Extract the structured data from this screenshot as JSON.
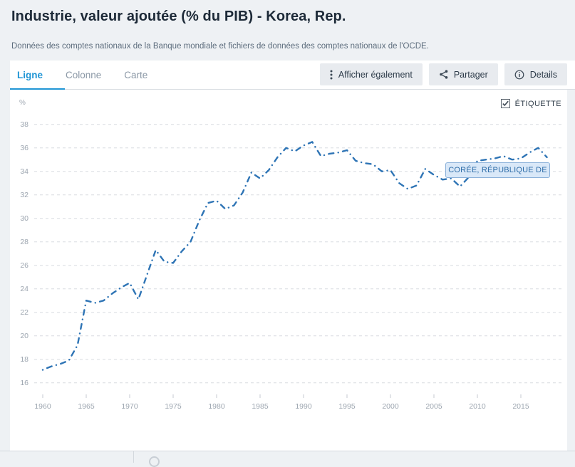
{
  "header": {
    "title": "Industrie, valeur ajoutée (% du PIB) - Korea, Rep.",
    "subtitle": "Données des comptes nationaux de la Banque mondiale et fichiers de données des comptes nationaux de l'OCDE."
  },
  "tabs": {
    "ligne": "Ligne",
    "colonne": "Colonne",
    "carte": "Carte",
    "active": "Ligne"
  },
  "actions": {
    "show_also": "Afficher également",
    "share": "Partager",
    "details": "Details"
  },
  "chart_controls": {
    "label_toggle": "ÉTIQUETTE",
    "checked": true
  },
  "series_label": "CORÉE, RÉPUBLIQUE DE",
  "chart_data": {
    "type": "line",
    "title": "Industrie, valeur ajoutée (% du PIB) - Korea, Rep.",
    "xlabel": "",
    "ylabel": "%",
    "x": [
      1960,
      1961,
      1962,
      1963,
      1964,
      1965,
      1966,
      1967,
      1968,
      1969,
      1970,
      1971,
      1972,
      1973,
      1974,
      1975,
      1976,
      1977,
      1978,
      1979,
      1980,
      1981,
      1982,
      1983,
      1984,
      1985,
      1986,
      1987,
      1988,
      1989,
      1990,
      1991,
      1992,
      1993,
      1994,
      1995,
      1996,
      1997,
      1998,
      1999,
      2000,
      2001,
      2002,
      2003,
      2004,
      2005,
      2006,
      2007,
      2008,
      2009,
      2010,
      2011,
      2012,
      2013,
      2014,
      2015,
      2016,
      2017,
      2018
    ],
    "series": [
      {
        "name": "Corée, République de",
        "values": [
          17.1,
          17.4,
          17.6,
          17.9,
          19.2,
          23.0,
          22.8,
          23.0,
          23.6,
          24.1,
          24.5,
          23.1,
          25.2,
          27.3,
          26.3,
          26.2,
          27.2,
          28.0,
          29.8,
          31.3,
          31.5,
          30.8,
          31.1,
          32.2,
          33.9,
          33.4,
          34.1,
          35.2,
          36.0,
          35.7,
          36.2,
          36.5,
          35.3,
          35.5,
          35.6,
          35.8,
          34.9,
          34.7,
          34.6,
          34.0,
          34.1,
          33.0,
          32.5,
          32.8,
          34.2,
          33.7,
          33.3,
          33.4,
          32.7,
          33.5,
          34.9,
          35.0,
          35.1,
          35.3,
          35.0,
          35.1,
          35.6,
          36.0,
          35.2
        ]
      }
    ],
    "xticks": [
      1960,
      1965,
      1970,
      1975,
      1980,
      1985,
      1990,
      1995,
      2000,
      2005,
      2010,
      2015
    ],
    "yticks": [
      16,
      18,
      20,
      22,
      24,
      26,
      28,
      30,
      32,
      34,
      36,
      38
    ],
    "ylim": [
      15,
      39
    ],
    "xlim": [
      1959,
      2019.5
    ],
    "grid": "horizontal-dashed",
    "legend_position": "inline-label-box",
    "line_style": "dash-dot",
    "line_color": "#2e74b5"
  },
  "colors": {
    "page_bg": "#eef1f4",
    "card_bg": "#ffffff",
    "accent_blue": "#2196d5",
    "line": "#2e74b5",
    "tooltip_bg": "#d9e8f8",
    "tooltip_border": "#8ab0d9",
    "axis_label": "#9da6b0"
  }
}
